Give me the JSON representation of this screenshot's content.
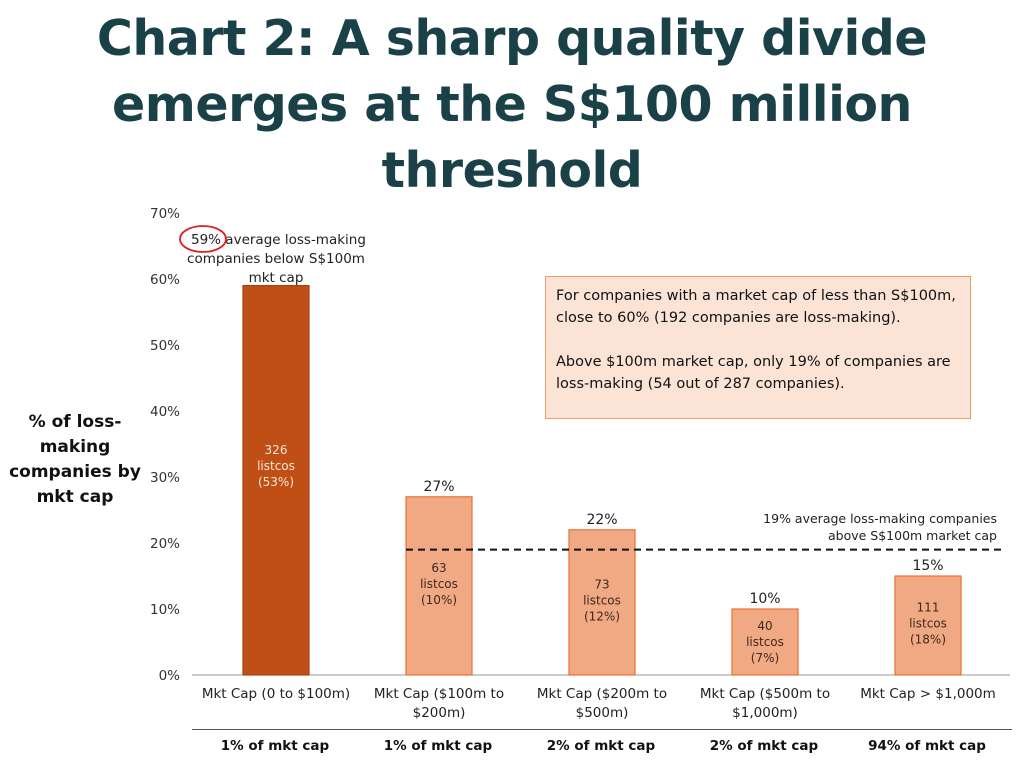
{
  "title": "Chart 2: A sharp quality divide emerges at the S$100 million threshold",
  "annotation_box": {
    "para1": "For companies with a market cap of less than S$100m, close to 60% (192 companies are loss-making).",
    "para2": "Above $100m market cap, only 19% of companies are loss-making (54 out of 287 companies)."
  },
  "below_note": {
    "pct": "59%",
    "text_line1": " average loss-making",
    "text_line2": "companies below S$100m",
    "text_line3": "mkt cap"
  },
  "ref_line": {
    "value": 19,
    "label_line1": "19% average loss-making companies",
    "label_line2": "above S$100m market cap"
  },
  "market_cap_shares": [
    "1% of mkt cap",
    "1% of mkt cap",
    "2% of mkt cap",
    "2% of mkt cap",
    "94% of mkt cap"
  ],
  "colors": {
    "title": "#1a4148",
    "bar_dark": "#c04f15",
    "bar_light": "#f1a983",
    "bar_light_border": "#e97132",
    "circle": "#e02020"
  },
  "chart_data": {
    "type": "bar",
    "ylabel": "% of loss-making companies by mkt cap",
    "ylim": [
      0,
      70
    ],
    "yticks": [
      0,
      10,
      20,
      30,
      40,
      50,
      60,
      70
    ],
    "ytick_labels": [
      "0%",
      "10%",
      "20%",
      "30%",
      "40%",
      "50%",
      "60%",
      "70%"
    ],
    "categories": [
      [
        "Mkt Cap (0 to $100m)"
      ],
      [
        "Mkt Cap ($100m to",
        "$200m)"
      ],
      [
        "Mkt Cap ($200m to",
        "$500m)"
      ],
      [
        "Mkt Cap ($500m to",
        "$1,000m)"
      ],
      [
        "Mkt Cap > $1,000m"
      ]
    ],
    "values": [
      59,
      27,
      22,
      10,
      15
    ],
    "value_labels": [
      "",
      "27%",
      "22%",
      "10%",
      "15%"
    ],
    "bar_inner_labels": [
      [
        "326",
        "listcos",
        "(53%)"
      ],
      [
        "63",
        "listcos",
        "(10%)"
      ],
      [
        "73",
        "listcos",
        "(12%)"
      ],
      [
        "40",
        "listcos",
        "(7%)"
      ],
      [
        "111",
        "listcos",
        "(18%)"
      ]
    ],
    "grid": false,
    "legend": "none"
  }
}
